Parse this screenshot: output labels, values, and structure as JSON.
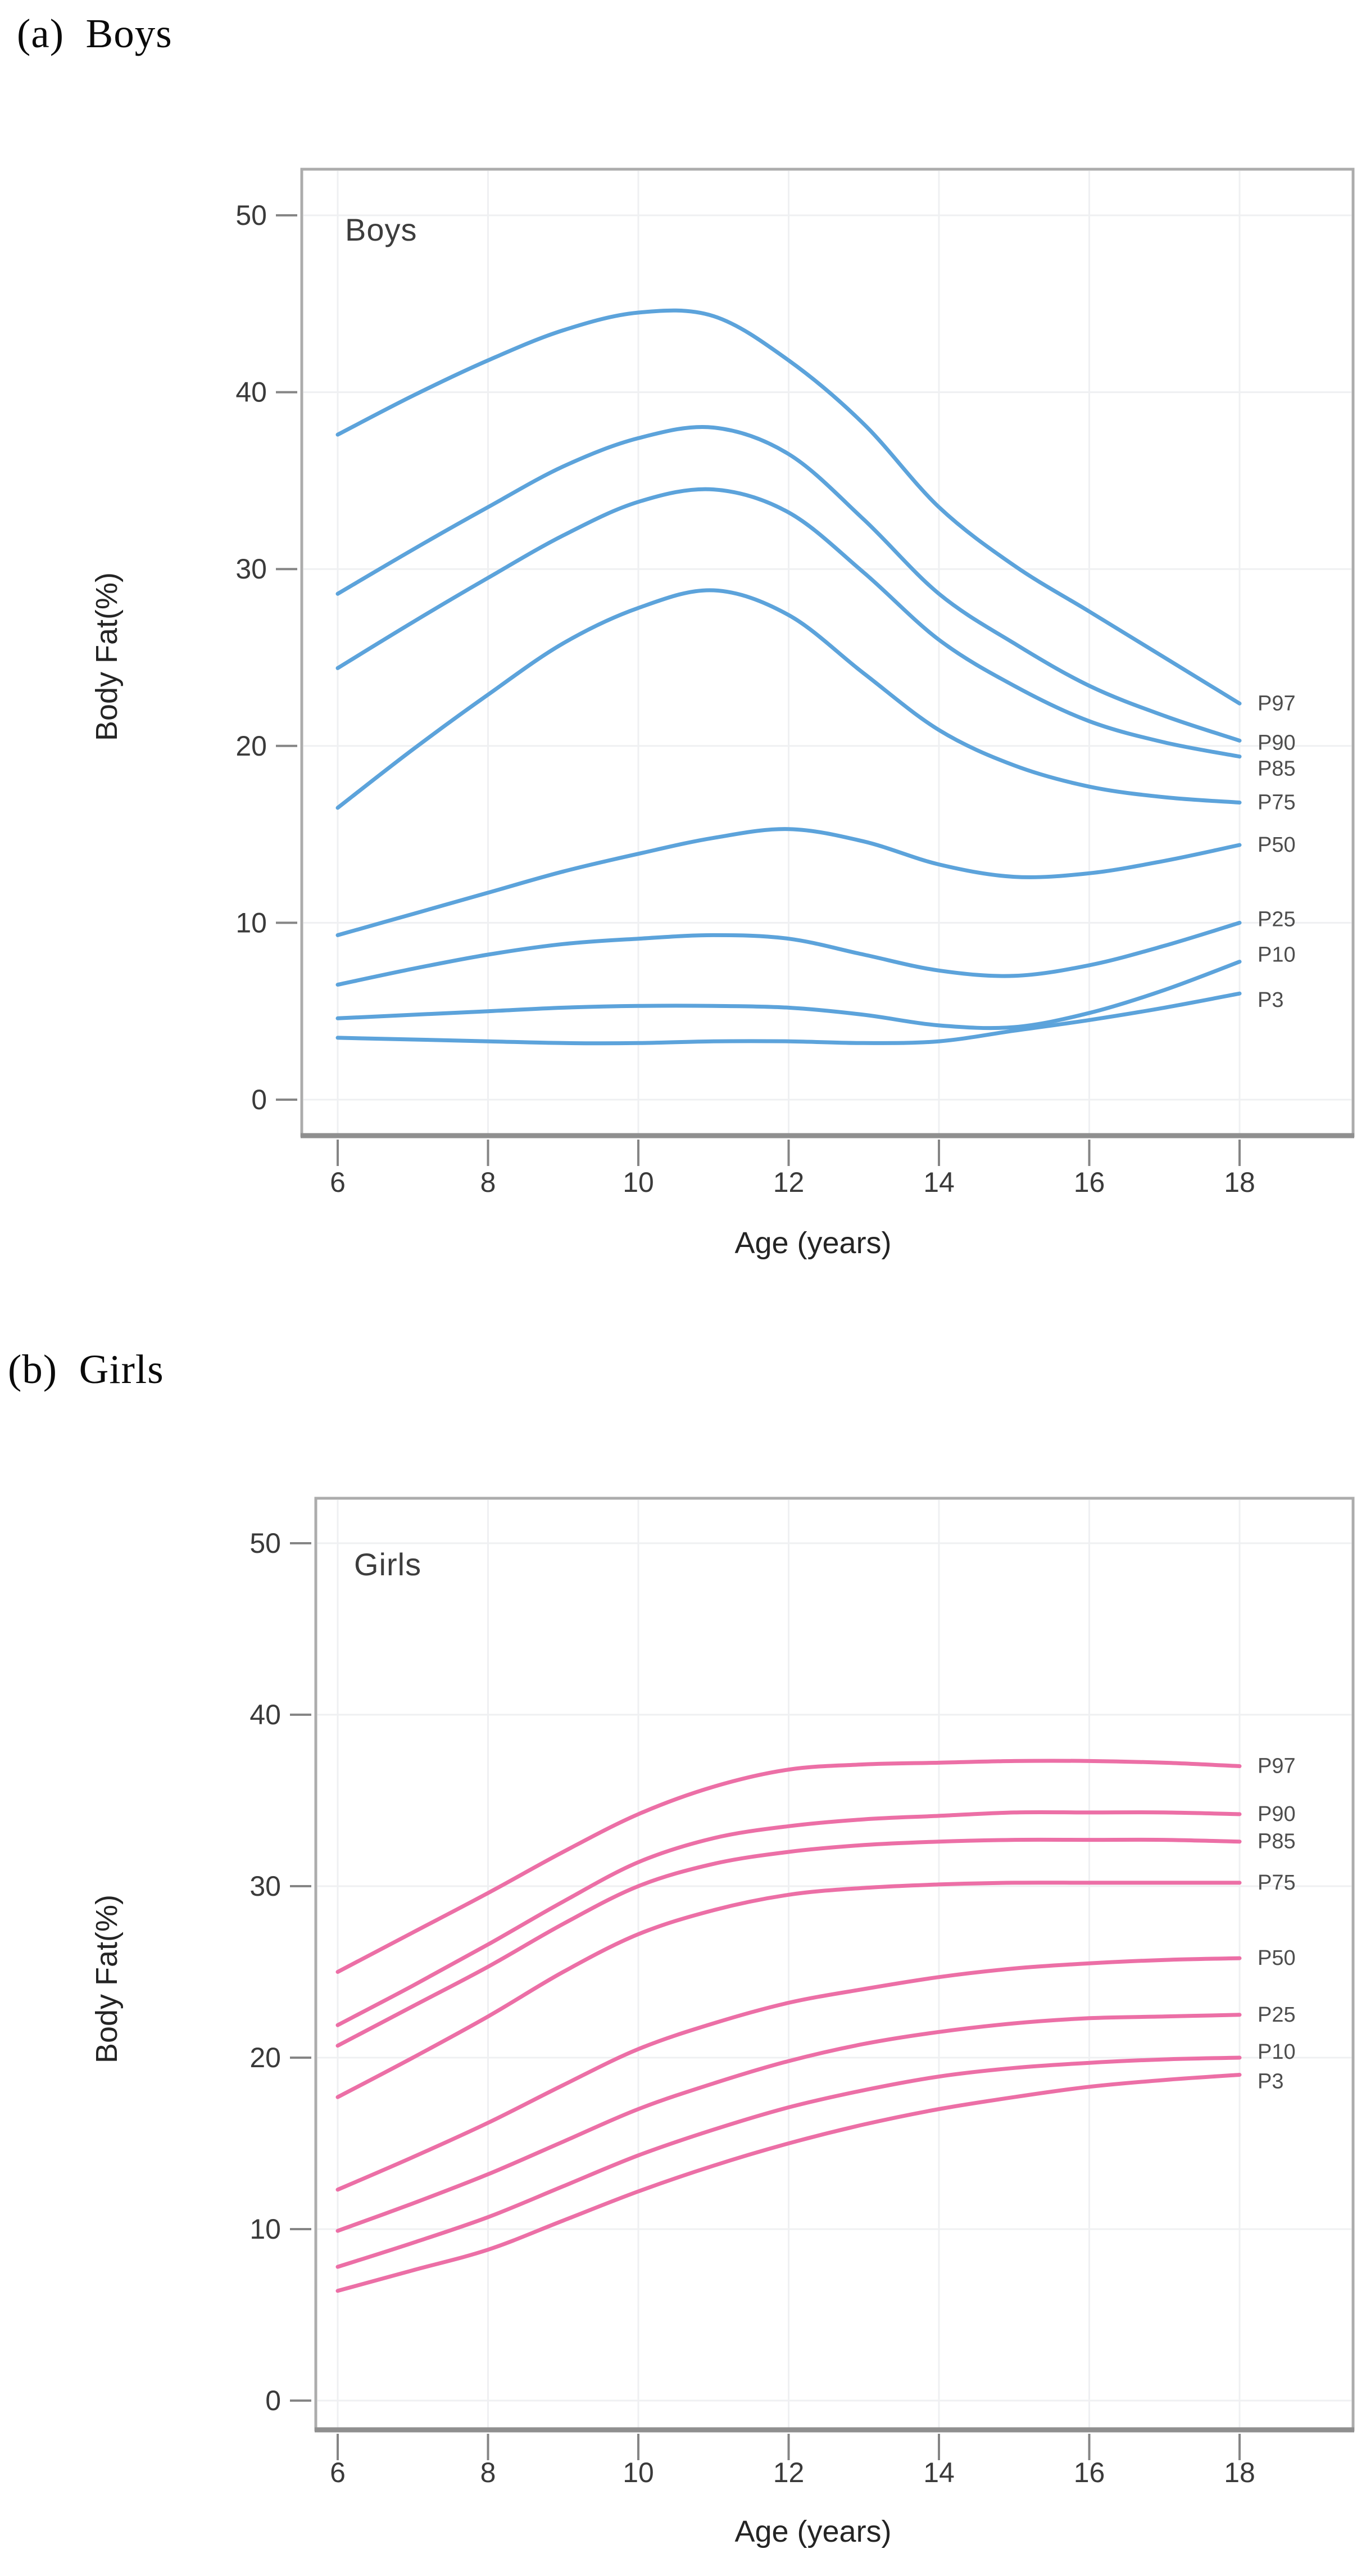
{
  "style": {
    "boys_line_color": "#5CA3DB",
    "girls_line_color": "#EC6FA6",
    "frame_color": "#ACACAC",
    "frame_bottom_color": "#8F8F8F",
    "grid_color": "#EFF0F2",
    "tick_color": "#858585",
    "tick_label_color": "#3a3a3a",
    "series_label_color": "#4d4d4d"
  },
  "chart_data": [
    {
      "type": "line",
      "panel_caption": "(a)  Boys",
      "title": "Boys",
      "xlabel": "Age (years)",
      "ylabel": "Body Fat(%)",
      "line_color": "#5CA3DB",
      "grid": true,
      "xlim": [
        5.5,
        19.5
      ],
      "ylim": [
        -2,
        52.5
      ],
      "xticks": [
        6,
        8,
        10,
        12,
        14,
        16,
        18
      ],
      "yticks": [
        0,
        10,
        20,
        30,
        40,
        50
      ],
      "x": [
        6,
        7,
        8,
        9,
        10,
        11,
        12,
        13,
        14,
        15,
        16,
        17,
        18
      ],
      "series": [
        {
          "name": "P97",
          "values": [
            37.6,
            39.8,
            41.8,
            43.5,
            44.5,
            44.3,
            41.8,
            38.2,
            33.5,
            30.2,
            27.6,
            25.0,
            22.4
          ]
        },
        {
          "name": "P90",
          "values": [
            28.6,
            31.1,
            33.5,
            35.8,
            37.4,
            38.0,
            36.5,
            32.8,
            28.6,
            25.8,
            23.4,
            21.7,
            20.3
          ]
        },
        {
          "name": "P85",
          "values": [
            24.4,
            27.0,
            29.5,
            31.9,
            33.8,
            34.5,
            33.2,
            29.8,
            26.0,
            23.4,
            21.4,
            20.2,
            19.4
          ]
        },
        {
          "name": "P75",
          "values": [
            16.5,
            19.8,
            22.9,
            25.8,
            27.8,
            28.8,
            27.4,
            24.1,
            20.9,
            18.9,
            17.7,
            17.1,
            16.8
          ]
        },
        {
          "name": "P50",
          "values": [
            9.3,
            10.5,
            11.7,
            12.9,
            13.9,
            14.8,
            15.3,
            14.6,
            13.3,
            12.6,
            12.8,
            13.5,
            14.4
          ]
        },
        {
          "name": "P25",
          "values": [
            6.5,
            7.4,
            8.2,
            8.8,
            9.1,
            9.3,
            9.1,
            8.2,
            7.3,
            7.0,
            7.6,
            8.7,
            10.0
          ]
        },
        {
          "name": "P10",
          "values": [
            4.6,
            4.8,
            5.0,
            5.2,
            5.3,
            5.3,
            5.2,
            4.8,
            4.2,
            4.1,
            4.9,
            6.2,
            7.8
          ]
        },
        {
          "name": "P3",
          "values": [
            3.5,
            3.4,
            3.3,
            3.2,
            3.2,
            3.3,
            3.3,
            3.2,
            3.3,
            3.9,
            4.5,
            5.2,
            6.0
          ]
        }
      ]
    },
    {
      "type": "line",
      "panel_caption": "(b)  Girls",
      "title": "Girls",
      "xlabel": "Age (years)",
      "ylabel": "Body Fat(%)",
      "line_color": "#EC6FA6",
      "grid": true,
      "xlim": [
        5.5,
        19.5
      ],
      "ylim": [
        -2,
        52.5
      ],
      "xticks": [
        6,
        8,
        10,
        12,
        14,
        16,
        18
      ],
      "yticks": [
        0,
        10,
        20,
        30,
        40,
        50
      ],
      "x": [
        6,
        7,
        8,
        9,
        10,
        11,
        12,
        13,
        14,
        15,
        16,
        17,
        18
      ],
      "series": [
        {
          "name": "P97",
          "values": [
            25.0,
            27.3,
            29.6,
            32.0,
            34.2,
            35.8,
            36.8,
            37.1,
            37.2,
            37.3,
            37.3,
            37.2,
            37.0
          ]
        },
        {
          "name": "P90",
          "values": [
            21.9,
            24.2,
            26.6,
            29.1,
            31.4,
            32.8,
            33.5,
            33.9,
            34.1,
            34.3,
            34.3,
            34.3,
            34.2
          ]
        },
        {
          "name": "P85",
          "values": [
            20.7,
            23.0,
            25.3,
            27.8,
            30.0,
            31.3,
            32.0,
            32.4,
            32.6,
            32.7,
            32.7,
            32.7,
            32.6
          ]
        },
        {
          "name": "P75",
          "values": [
            17.7,
            20.0,
            22.4,
            25.0,
            27.2,
            28.6,
            29.5,
            29.9,
            30.1,
            30.2,
            30.2,
            30.2,
            30.2
          ]
        },
        {
          "name": "P50",
          "values": [
            12.3,
            14.2,
            16.2,
            18.4,
            20.5,
            22.0,
            23.2,
            24.0,
            24.7,
            25.2,
            25.5,
            25.7,
            25.8
          ]
        },
        {
          "name": "P25",
          "values": [
            9.9,
            11.5,
            13.2,
            15.1,
            17.0,
            18.5,
            19.8,
            20.8,
            21.5,
            22.0,
            22.3,
            22.4,
            22.5
          ]
        },
        {
          "name": "P10",
          "values": [
            7.8,
            9.2,
            10.7,
            12.5,
            14.3,
            15.8,
            17.1,
            18.1,
            18.9,
            19.4,
            19.7,
            19.9,
            20.0
          ]
        },
        {
          "name": "P3",
          "values": [
            6.4,
            7.6,
            8.8,
            10.5,
            12.2,
            13.7,
            15.0,
            16.1,
            17.0,
            17.7,
            18.3,
            18.7,
            19.0
          ]
        }
      ]
    }
  ]
}
